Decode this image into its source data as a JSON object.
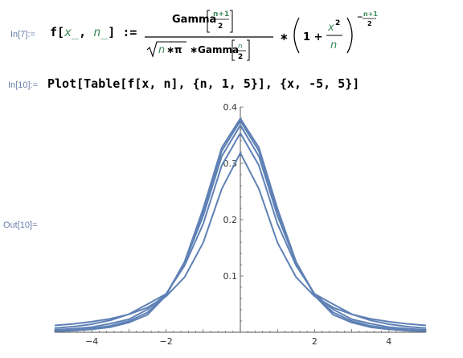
{
  "cells": {
    "in7": {
      "label": "In[7]:=",
      "lhs": {
        "f": "f",
        "bracket_open": "[",
        "x": "x_",
        "comma": ", ",
        "n": "n_",
        "bracket_close": "]",
        "assign": ":="
      },
      "gamma_num": "Gamma",
      "num_frac_top": "n+1",
      "num_frac_bottom": "2",
      "sqrt_n": "n",
      "sqrt_pi": "∗π",
      "star1": "∗",
      "gamma_den": "Gamma",
      "den_frac_top": "n",
      "den_frac_bottom": "2",
      "times": "∗",
      "one_plus": "1 +",
      "x2_x": "x",
      "x2_exp": "2",
      "x2_den": "n",
      "exponent_minus": "−",
      "exp_top": "n+1",
      "exp_bottom": "2"
    },
    "in10": {
      "label": "In[10]:=",
      "code": "Plot[Table[f[x, n], {n, 1, 5}], {x, -5, 5}]"
    },
    "out10": {
      "label": "Out[10]="
    }
  },
  "colors": {
    "curve": "#5e81b5",
    "label": "#6a7fa8",
    "axis": "#555555"
  },
  "chart_data": {
    "type": "line",
    "title": "",
    "xlabel": "",
    "ylabel": "",
    "xlim": [
      -5,
      5
    ],
    "ylim": [
      0,
      0.4
    ],
    "x_ticks": [
      -4,
      -2,
      2,
      4
    ],
    "x_tick_labels": [
      "−4",
      "−2",
      "2",
      "4"
    ],
    "y_ticks": [
      0.1,
      0.2,
      0.3,
      0.4
    ],
    "y_tick_labels": [
      "0.1",
      "0.2",
      "0.3",
      "0.4"
    ],
    "grid": false,
    "x": [
      -5,
      -4.5,
      -4,
      -3.5,
      -3,
      -2.5,
      -2,
      -1.5,
      -1,
      -0.5,
      0,
      0.5,
      1,
      1.5,
      2,
      2.5,
      3,
      3.5,
      4,
      4.5,
      5
    ],
    "series": [
      {
        "values": [
          0.0122,
          0.0149,
          0.0187,
          0.024,
          0.0318,
          0.0439,
          0.0637,
          0.0979,
          0.1592,
          0.2546,
          0.3183,
          0.2546,
          0.1592,
          0.0979,
          0.0637,
          0.0439,
          0.0318,
          0.024,
          0.0187,
          0.0149,
          0.0122
        ]
      },
      {
        "values": [
          0.0073,
          0.01,
          0.0143,
          0.0212,
          0.0321,
          0.0499,
          0.068,
          0.1186,
          0.1925,
          0.2962,
          0.3536,
          0.2962,
          0.1925,
          0.1186,
          0.068,
          0.0499,
          0.0321,
          0.0212,
          0.0143,
          0.01,
          0.0073
        ]
      },
      {
        "values": [
          0.0042,
          0.0063,
          0.0092,
          0.0154,
          0.023,
          0.0405,
          0.0675,
          0.1235,
          0.2067,
          0.3125,
          0.3676,
          0.3125,
          0.2067,
          0.1235,
          0.0675,
          0.0405,
          0.023,
          0.0154,
          0.0092,
          0.0063,
          0.0042
        ]
      },
      {
        "values": [
          0.0022,
          0.0036,
          0.0067,
          0.0115,
          0.0198,
          0.0352,
          0.0663,
          0.125,
          0.2147,
          0.322,
          0.375,
          0.322,
          0.2147,
          0.125,
          0.0663,
          0.0352,
          0.0198,
          0.0115,
          0.0067,
          0.0036,
          0.0022
        ]
      },
      {
        "values": [
          0.0018,
          0.0028,
          0.0051,
          0.009,
          0.0173,
          0.0311,
          0.0651,
          0.1252,
          0.2197,
          0.3279,
          0.3796,
          0.3279,
          0.2197,
          0.1252,
          0.0651,
          0.0311,
          0.0173,
          0.009,
          0.0051,
          0.0028,
          0.0018
        ]
      }
    ]
  }
}
